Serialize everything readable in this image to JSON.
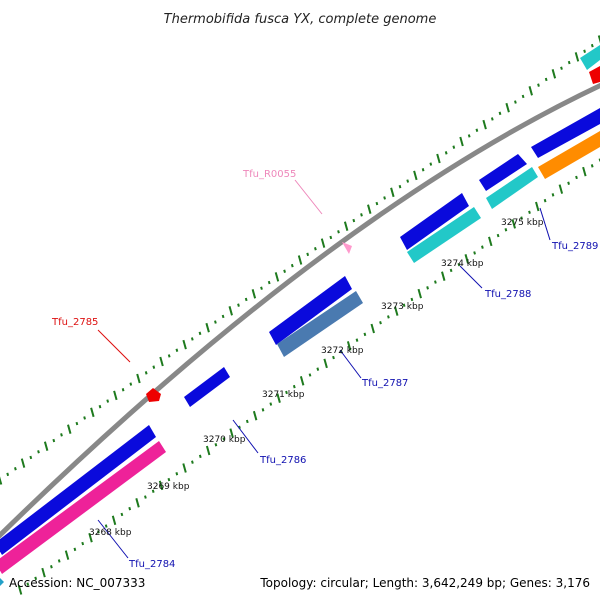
{
  "title": "Thermobifida fusca YX, complete genome",
  "footer": {
    "accession": "Accession: NC_007333",
    "summary": "Topology: circular; Length: 3,642,249 bp; Genes: 3,176"
  },
  "colors": {
    "backbone": "#888888",
    "gc_ticks": "#1e7a1e",
    "cds_blue": "#0a0adc",
    "cds_cyan": "#22c8c8",
    "cds_steel": "#4a7ab0",
    "cds_pink": "#ee2299",
    "cds_orange": "#ff8c00",
    "cds_red": "#ee0000",
    "rna_pink": "#ff9acd",
    "label_blue": "#1010b0",
    "label_red": "#dd1010",
    "label_pink": "#ee88bb"
  },
  "scale_labels": [
    "3268 kbp",
    "3269 kbp",
    "3270 kbp",
    "3271 kbp",
    "3272 kbp",
    "3273 kbp",
    "3274 kbp",
    "3275 kbp"
  ],
  "gene_labels": [
    {
      "name": "Tfu_2784",
      "color": "label_blue"
    },
    {
      "name": "Tfu_2785",
      "color": "label_red"
    },
    {
      "name": "Tfu_2786",
      "color": "label_blue"
    },
    {
      "name": "Tfu_2787",
      "color": "label_blue"
    },
    {
      "name": "Tfu_R0055",
      "color": "label_pink"
    },
    {
      "name": "Tfu_2788",
      "color": "label_blue"
    },
    {
      "name": "Tfu_2789",
      "color": "label_blue"
    }
  ]
}
